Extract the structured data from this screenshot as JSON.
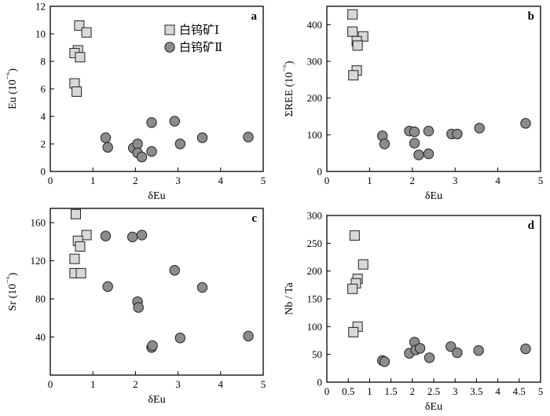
{
  "chart_data": [
    {
      "id": "a",
      "type": "scatter",
      "panel_label": "a",
      "xlabel": "δEu",
      "ylabel": "Eu (10⁻⁶)",
      "xlim": [
        0,
        5
      ],
      "ylim": [
        0,
        12
      ],
      "xticks": [
        0,
        1,
        2,
        3,
        4,
        5
      ],
      "yticks": [
        0,
        2,
        4,
        6,
        8,
        10,
        12
      ],
      "legend": {
        "position": "top-right",
        "entries": [
          {
            "label": "白钨矿Ⅰ",
            "marker": "square",
            "color": "#d8d8d8"
          },
          {
            "label": "白钨矿Ⅱ",
            "marker": "circle",
            "color": "#8c8c8c"
          }
        ]
      },
      "series": [
        {
          "name": "白钨矿Ⅰ",
          "marker": "square",
          "color": "#d8d8d8",
          "points": [
            [
              0.68,
              10.6
            ],
            [
              0.85,
              10.1
            ],
            [
              0.65,
              8.8
            ],
            [
              0.57,
              8.6
            ],
            [
              0.7,
              8.3
            ],
            [
              0.57,
              6.4
            ],
            [
              0.62,
              5.8
            ]
          ]
        },
        {
          "name": "白钨矿Ⅱ",
          "marker": "circle",
          "color": "#8c8c8c",
          "points": [
            [
              1.3,
              2.45
            ],
            [
              1.35,
              1.75
            ],
            [
              1.95,
              1.7
            ],
            [
              2.05,
              2.0
            ],
            [
              2.05,
              1.35
            ],
            [
              2.15,
              1.05
            ],
            [
              2.38,
              3.55
            ],
            [
              2.38,
              1.45
            ],
            [
              2.92,
              3.65
            ],
            [
              3.05,
              2.0
            ],
            [
              3.57,
              2.45
            ],
            [
              4.65,
              2.5
            ]
          ]
        }
      ]
    },
    {
      "id": "b",
      "type": "scatter",
      "panel_label": "b",
      "xlabel": "δEu",
      "ylabel": "ΣREE (10⁻⁶)",
      "xlim": [
        0,
        5
      ],
      "ylim": [
        0,
        450
      ],
      "xticks": [
        0,
        1,
        2,
        3,
        4,
        5
      ],
      "yticks": [
        0,
        100,
        200,
        300,
        400
      ],
      "series": [
        {
          "name": "白钨矿Ⅰ",
          "marker": "square",
          "color": "#d8d8d8",
          "points": [
            [
              0.6,
              428
            ],
            [
              0.6,
              381
            ],
            [
              0.85,
              368
            ],
            [
              0.7,
              355
            ],
            [
              0.72,
              343
            ],
            [
              0.7,
              275
            ],
            [
              0.62,
              262
            ]
          ]
        },
        {
          "name": "白钨矿Ⅱ",
          "marker": "circle",
          "color": "#8c8c8c",
          "points": [
            [
              1.3,
              97
            ],
            [
              1.35,
              75
            ],
            [
              1.93,
              110
            ],
            [
              2.05,
              108
            ],
            [
              2.05,
              77
            ],
            [
              2.15,
              45
            ],
            [
              2.38,
              110
            ],
            [
              2.38,
              48
            ],
            [
              2.92,
              102
            ],
            [
              3.05,
              102
            ],
            [
              3.57,
              118
            ],
            [
              4.65,
              131
            ]
          ]
        }
      ]
    },
    {
      "id": "c",
      "type": "scatter",
      "panel_label": "c",
      "xlabel": "δEu",
      "ylabel": "Sr (10⁻⁶)",
      "xlim": [
        0,
        5
      ],
      "ylim": [
        0,
        175
      ],
      "xticks": [
        0,
        1,
        2,
        3,
        4,
        5
      ],
      "yticks": [
        40,
        80,
        120,
        160
      ],
      "series": [
        {
          "name": "白钨矿Ⅰ",
          "marker": "square",
          "color": "#d8d8d8",
          "points": [
            [
              0.6,
              169
            ],
            [
              0.85,
              147
            ],
            [
              0.65,
              141
            ],
            [
              0.7,
              135
            ],
            [
              0.57,
              122
            ],
            [
              0.57,
              107
            ],
            [
              0.72,
              107
            ]
          ]
        },
        {
          "name": "白钨矿Ⅱ",
          "marker": "circle",
          "color": "#8c8c8c",
          "points": [
            [
              1.3,
              146
            ],
            [
              1.35,
              93
            ],
            [
              1.93,
              145
            ],
            [
              2.15,
              147
            ],
            [
              2.05,
              77
            ],
            [
              2.07,
              71
            ],
            [
              2.38,
              29
            ],
            [
              2.4,
              31
            ],
            [
              2.92,
              110
            ],
            [
              3.05,
              39
            ],
            [
              3.57,
              92
            ],
            [
              4.65,
              41
            ]
          ]
        }
      ]
    },
    {
      "id": "d",
      "type": "scatter",
      "panel_label": "d",
      "xlabel": "δEu",
      "ylabel": "Nb / Ta",
      "xlim": [
        0,
        5
      ],
      "ylim": [
        0,
        300
      ],
      "xticks": [
        0,
        0.5,
        1,
        1.5,
        2,
        2.5,
        3,
        3.5,
        4,
        4.5,
        5
      ],
      "yticks": [
        0,
        50,
        100,
        150,
        200,
        250,
        300
      ],
      "series": [
        {
          "name": "白钨矿Ⅰ",
          "marker": "square",
          "color": "#d8d8d8",
          "points": [
            [
              0.65,
              264
            ],
            [
              0.85,
              212
            ],
            [
              0.72,
              186
            ],
            [
              0.68,
              178
            ],
            [
              0.6,
              168
            ],
            [
              0.72,
              100
            ],
            [
              0.62,
              90
            ]
          ]
        },
        {
          "name": "白钨矿Ⅱ",
          "marker": "circle",
          "color": "#8c8c8c",
          "points": [
            [
              1.3,
              39
            ],
            [
              1.35,
              37
            ],
            [
              1.93,
              52
            ],
            [
              2.05,
              72
            ],
            [
              2.08,
              58
            ],
            [
              2.18,
              61
            ],
            [
              2.4,
              44
            ],
            [
              2.9,
              64
            ],
            [
              3.05,
              53
            ],
            [
              3.55,
              57
            ],
            [
              4.65,
              60
            ]
          ]
        }
      ]
    }
  ]
}
